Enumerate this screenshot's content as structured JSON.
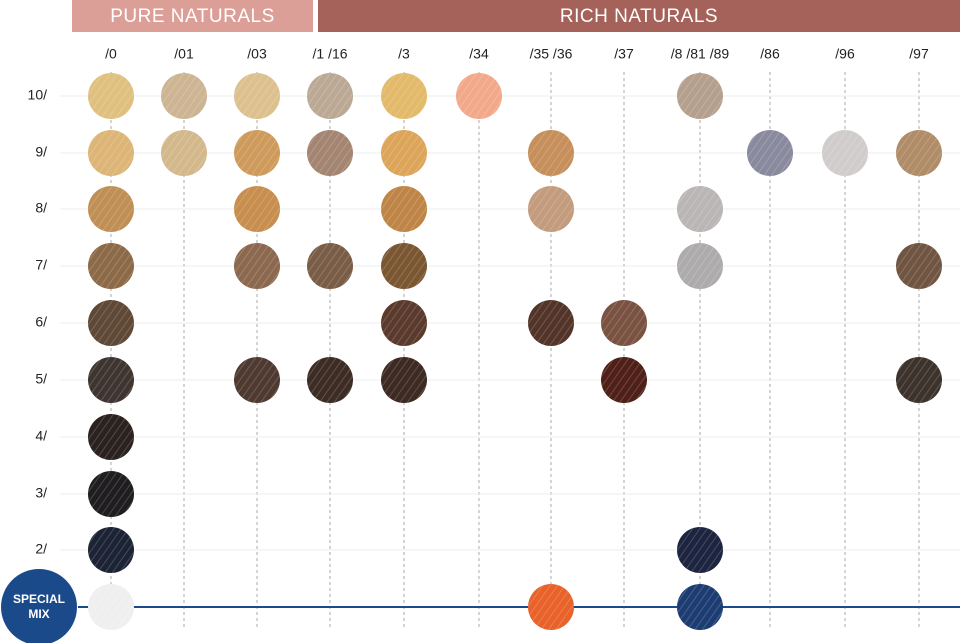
{
  "header": {
    "groups": [
      {
        "label": "PURE NATURALS",
        "color": "#dc9f98"
      },
      {
        "label": "RICH NATURALS",
        "color": "#a5625a"
      }
    ]
  },
  "columns": [
    "/0",
    "/01",
    "/03",
    "/1 /16",
    "/3",
    "/34",
    "/35 /36",
    "/37",
    "/8 /81 /89",
    "/86",
    "/96",
    "/97"
  ],
  "rows": [
    {
      "label": "10/",
      "swatches": [
        {
          "col": 0,
          "color": "#e0c07e"
        },
        {
          "col": 1,
          "color": "#cdb593"
        },
        {
          "col": 2,
          "color": "#dcc18f"
        },
        {
          "col": 3,
          "color": "#bca995"
        },
        {
          "col": 4,
          "color": "#e3b96a"
        },
        {
          "col": 5,
          "color": "#f2a98a"
        },
        {
          "col": 8,
          "color": "#b5a08d"
        }
      ]
    },
    {
      "label": "9/",
      "swatches": [
        {
          "col": 0,
          "color": "#dcb577"
        },
        {
          "col": 1,
          "color": "#d3b88b"
        },
        {
          "col": 2,
          "color": "#cf9b5c"
        },
        {
          "col": 3,
          "color": "#a48572"
        },
        {
          "col": 4,
          "color": "#dca55a"
        },
        {
          "col": 6,
          "color": "#c68f5b"
        },
        {
          "col": 9,
          "color": "#8a8a9e"
        },
        {
          "col": 10,
          "color": "#d1cccc"
        },
        {
          "col": 11,
          "color": "#b08c68"
        }
      ]
    },
    {
      "label": "8/",
      "swatches": [
        {
          "col": 0,
          "color": "#c08f55"
        },
        {
          "col": 2,
          "color": "#c78e4e"
        },
        {
          "col": 4,
          "color": "#bf8547"
        },
        {
          "col": 6,
          "color": "#c39b7d"
        },
        {
          "col": 8,
          "color": "#b9b6b5"
        }
      ]
    },
    {
      "label": "7/",
      "swatches": [
        {
          "col": 0,
          "color": "#8c6a48"
        },
        {
          "col": 2,
          "color": "#8c684e"
        },
        {
          "col": 3,
          "color": "#7a5d46"
        },
        {
          "col": 4,
          "color": "#7b5632"
        },
        {
          "col": 8,
          "color": "#adabab"
        },
        {
          "col": 11,
          "color": "#705542"
        }
      ]
    },
    {
      "label": "6/",
      "swatches": [
        {
          "col": 0,
          "color": "#5f4835"
        },
        {
          "col": 4,
          "color": "#5a3a2c"
        },
        {
          "col": 6,
          "color": "#533429"
        },
        {
          "col": 7,
          "color": "#7a5242"
        }
      ]
    },
    {
      "label": "5/",
      "swatches": [
        {
          "col": 0,
          "color": "#3f3530"
        },
        {
          "col": 2,
          "color": "#4e3a30"
        },
        {
          "col": 3,
          "color": "#3d2c24"
        },
        {
          "col": 4,
          "color": "#3d2a22"
        },
        {
          "col": 7,
          "color": "#4e2018"
        },
        {
          "col": 11,
          "color": "#3d332c"
        }
      ]
    },
    {
      "label": "4/",
      "swatches": [
        {
          "col": 0,
          "color": "#2b221f"
        }
      ]
    },
    {
      "label": "3/",
      "swatches": [
        {
          "col": 0,
          "color": "#1f1d1f"
        }
      ]
    },
    {
      "label": "2/",
      "swatches": [
        {
          "col": 0,
          "color": "#1c2335"
        },
        {
          "col": 8,
          "color": "#1c2440"
        }
      ]
    }
  ],
  "special_mix": {
    "label_lines": [
      "SPECIAL",
      "MIX"
    ],
    "color": "#1a4a8a",
    "swatches": [
      {
        "col": 0,
        "color": "#efefef"
      },
      {
        "col": 6,
        "color": "#e8622a"
      },
      {
        "col": 8,
        "color": "#1d3d72"
      }
    ]
  }
}
